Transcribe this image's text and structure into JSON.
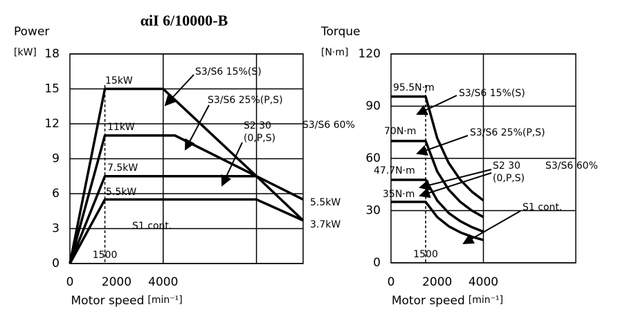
{
  "title": "αiI 6/10000-B",
  "chart_data": [
    {
      "type": "line",
      "y_label": "Power",
      "y_unit": "[kW]",
      "x_label": "Motor speed",
      "x_unit": "[min⁻¹]",
      "xlim": [
        0,
        10000
      ],
      "ylim": [
        0,
        18
      ],
      "xticks": [
        0,
        2000,
        4000
      ],
      "yticks": [
        0,
        3,
        6,
        9,
        12,
        15,
        18
      ],
      "x_gridlines": [
        4000,
        8000
      ],
      "grid": true,
      "vline": 1500,
      "series": [
        {
          "color": "#000000",
          "x": [
            0,
            1500,
            4000,
            8000,
            10000
          ],
          "values": [
            0,
            15,
            15,
            7.5,
            3.7
          ]
        },
        {
          "color": "#000000",
          "x": [
            0,
            1500,
            4500,
            10000
          ],
          "values": [
            0,
            11,
            11,
            5.5
          ]
        },
        {
          "color": "#000000",
          "x": [
            0,
            1500,
            8000
          ],
          "values": [
            0,
            7.5,
            7.5
          ]
        },
        {
          "color": "#000000",
          "x": [
            0,
            1500,
            8000,
            10000
          ],
          "values": [
            0,
            5.5,
            5.5,
            3.7
          ]
        }
      ],
      "annotations": [
        "15kW",
        "11kW",
        "7.5kW",
        "5.5kW",
        "S1 cont.",
        "S3/S6 15%(S)",
        "S3/S6 25%(P,S)",
        "S2 30",
        "(0,P,S)",
        "S3/S6 60%",
        "5.5kW",
        "3.7kW"
      ]
    },
    {
      "type": "line",
      "y_label": "Torque",
      "y_unit": "[N·m]",
      "x_label": "Motor speed",
      "x_unit": "[min⁻¹]",
      "xlim": [
        0,
        8000
      ],
      "ylim": [
        0,
        120
      ],
      "xticks": [
        0,
        2000,
        4000
      ],
      "yticks": [
        0,
        30,
        60,
        90,
        120
      ],
      "x_gridlines": [
        4000
      ],
      "grid": true,
      "vline": 1500,
      "series": [
        {
          "color": "#000000",
          "x": [
            0,
            1500,
            2000,
            2500,
            3000,
            3500,
            4000
          ],
          "values": [
            95.5,
            95.5,
            71.6,
            57.3,
            47.7,
            40.9,
            35.8
          ]
        },
        {
          "color": "#000000",
          "x": [
            0,
            1500,
            2000,
            2500,
            3000,
            3500,
            4000
          ],
          "values": [
            70,
            70,
            52.5,
            42,
            35,
            30,
            26.3
          ]
        },
        {
          "color": "#000000",
          "x": [
            0,
            1500,
            2000,
            2500,
            3000,
            3500,
            4000
          ],
          "values": [
            47.7,
            47.7,
            35.8,
            28.6,
            23.9,
            20.5,
            17.9
          ]
        },
        {
          "color": "#000000",
          "x": [
            0,
            1500,
            2000,
            2500,
            3000,
            3500,
            4000
          ],
          "values": [
            35,
            35,
            26.3,
            21,
            17.5,
            15,
            13.1
          ]
        }
      ],
      "annotations": [
        "95.5N·m",
        "70N·m",
        "47.7N·m",
        "35N·m",
        "S3/S6 15%(S)",
        "S3/S6 25%(P,S)",
        "S2 30",
        "(0,P,S)",
        "S3/S6 60%",
        "S1 cont."
      ]
    }
  ]
}
